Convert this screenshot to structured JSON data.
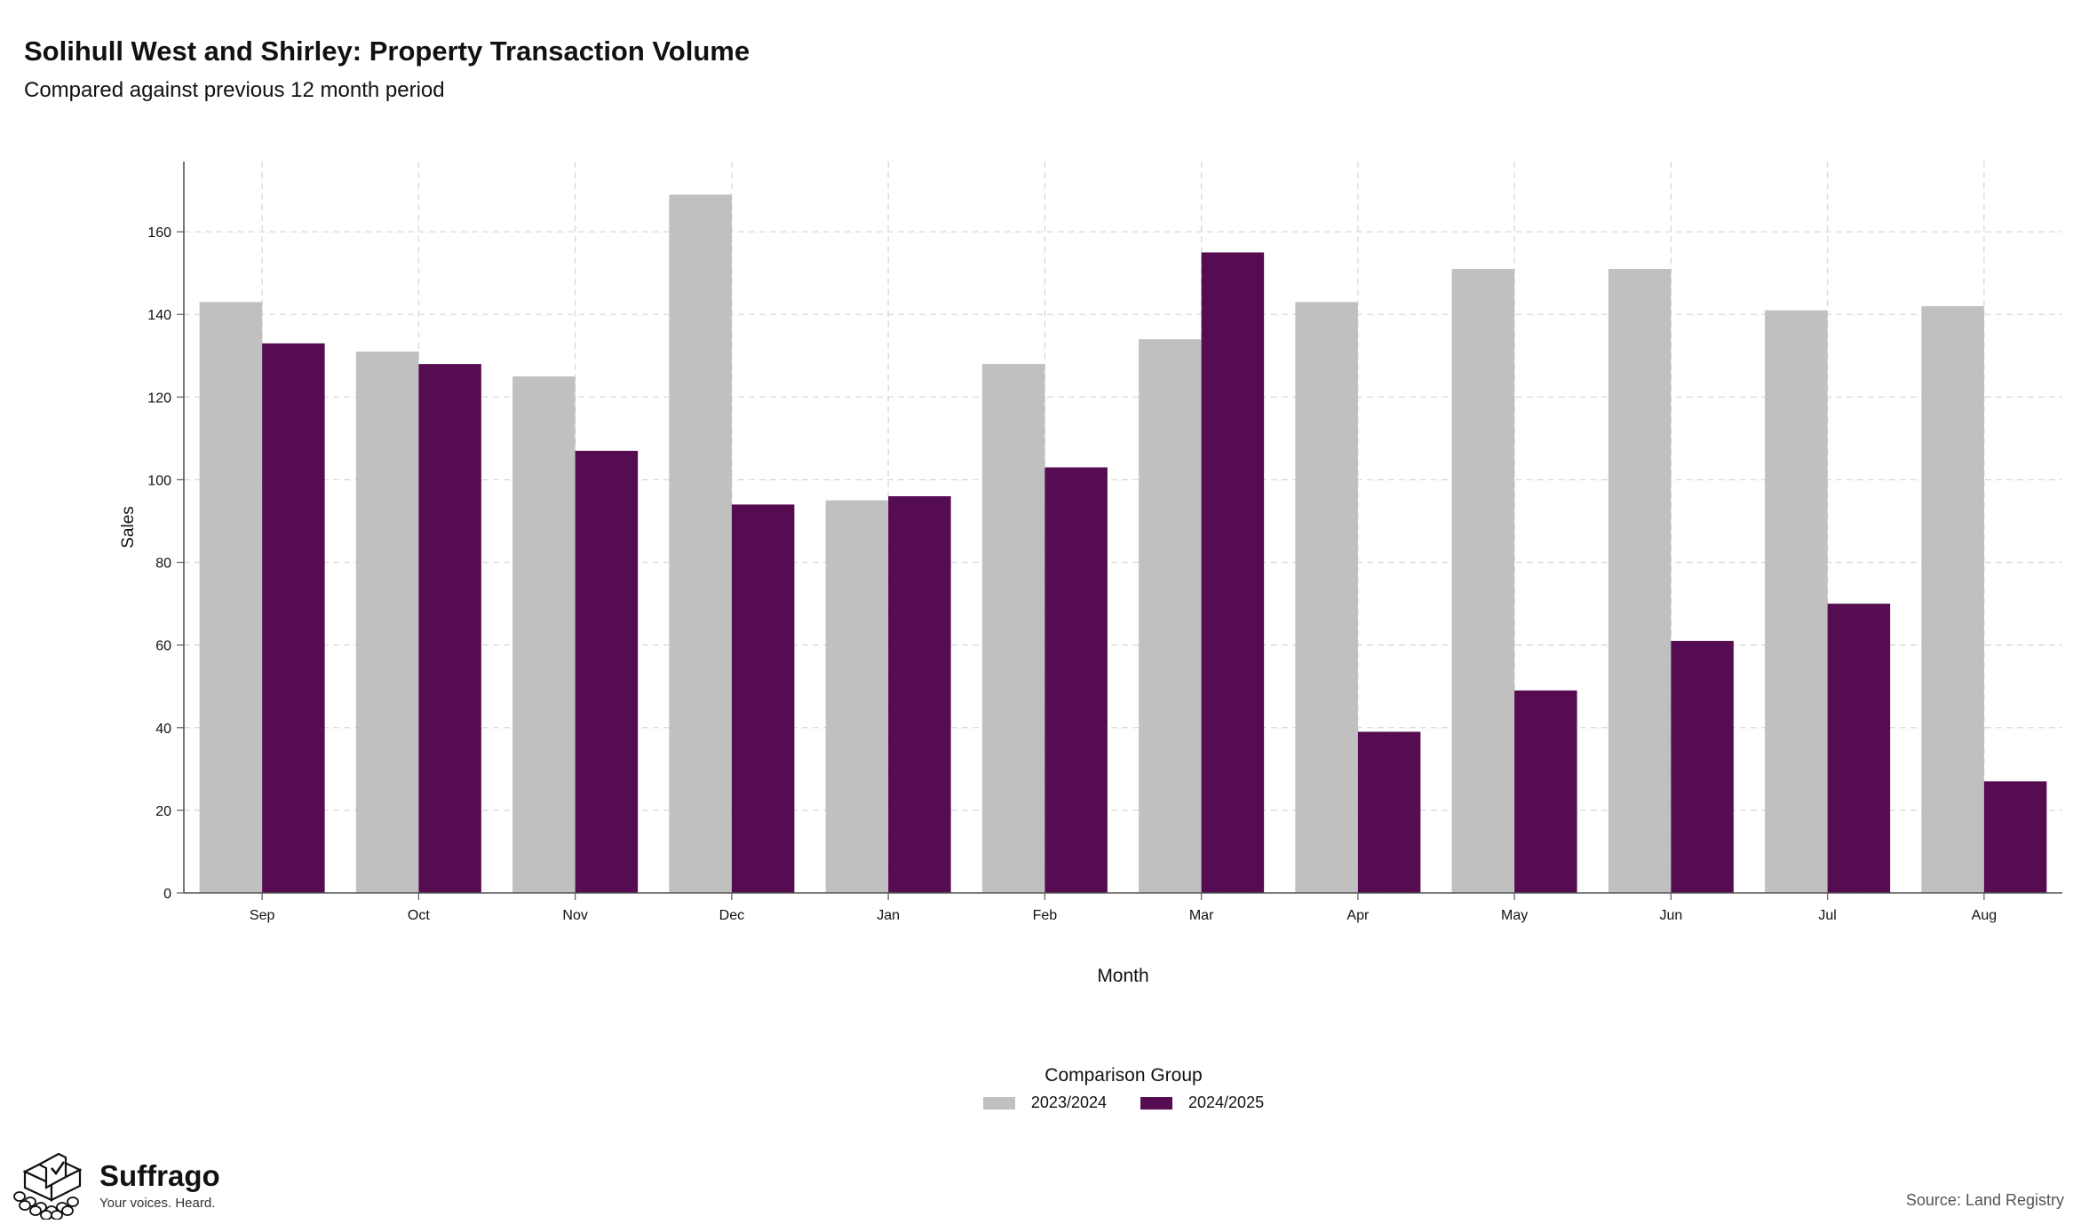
{
  "header": {
    "title": "Solihull West and Shirley: Property Transaction Volume",
    "subtitle": "Compared against previous 12 month period"
  },
  "legend": {
    "title": "Comparison Group",
    "items": [
      {
        "label": "2023/2024",
        "color": "#c0c0c0"
      },
      {
        "label": "2024/2025",
        "color": "#560c51"
      }
    ]
  },
  "brand": {
    "name": "Suffrago",
    "tagline": "Your voices. Heard.",
    "icon": "ballot-box-icon"
  },
  "source": "Source: Land Registry",
  "chart_data": {
    "type": "bar",
    "xlabel": "Month",
    "ylabel": "Sales",
    "ylim": [
      0,
      177
    ],
    "yticks": [
      0,
      20,
      40,
      60,
      80,
      100,
      120,
      140,
      160
    ],
    "grid": true,
    "legend_position": "bottom",
    "categories": [
      "Sep",
      "Oct",
      "Nov",
      "Dec",
      "Jan",
      "Feb",
      "Mar",
      "Apr",
      "May",
      "Jun",
      "Jul",
      "Aug"
    ],
    "series": [
      {
        "name": "2023/2024",
        "color": "#c0c0c0",
        "values": [
          143,
          131,
          125,
          169,
          95,
          128,
          134,
          143,
          151,
          151,
          141,
          142
        ]
      },
      {
        "name": "2024/2025",
        "color": "#560c51",
        "values": [
          133,
          128,
          107,
          94,
          96,
          103,
          155,
          39,
          49,
          61,
          70,
          27
        ]
      }
    ]
  }
}
